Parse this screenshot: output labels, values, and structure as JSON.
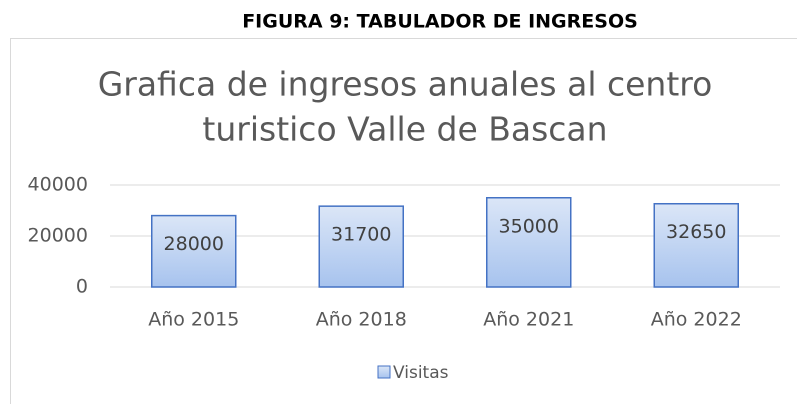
{
  "caption": "FIGURA 9: TABULADOR DE INGRESOS",
  "chart_data": {
    "type": "bar",
    "title": [
      "Grafica de ingresos anuales al centro",
      "turistico Valle de Bascan"
    ],
    "categories": [
      "Año 2015",
      "Año 2018",
      "Año 2021",
      "Año 2022"
    ],
    "series": [
      {
        "name": "Visitas",
        "color": "#4472c4",
        "values": [
          28000,
          31700,
          35000,
          32650
        ]
      }
    ],
    "ylim": [
      0,
      40000
    ],
    "yticks": [
      0,
      20000,
      40000
    ],
    "grid": true,
    "legend": "bottom"
  }
}
